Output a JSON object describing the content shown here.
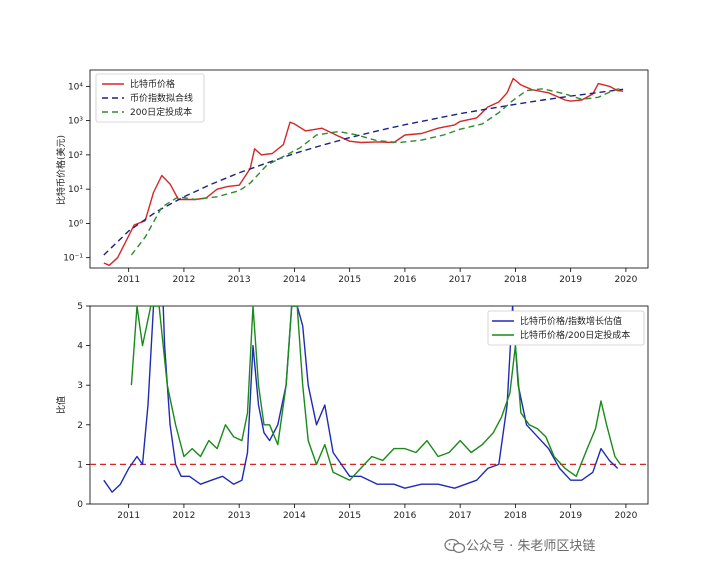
{
  "watermark": {
    "text": "公众号 · 朱老师区块链",
    "icon": "wechat-icon",
    "color": "#777777"
  },
  "chart_data": [
    {
      "type": "line",
      "title": "",
      "xlabel": "",
      "ylabel": "比特币价格(美元)",
      "yscale": "log",
      "ylim": [
        0.05,
        30000
      ],
      "xlim": [
        2010.3,
        2020.4
      ],
      "x_ticks": [
        "2011",
        "2012",
        "2013",
        "2014",
        "2015",
        "2016",
        "2017",
        "2018",
        "2019",
        "2020"
      ],
      "y_ticks": [
        {
          "value": 0.1,
          "label": "10⁻¹"
        },
        {
          "value": 1,
          "label": "10⁰"
        },
        {
          "value": 10,
          "label": "10¹"
        },
        {
          "value": 100,
          "label": "10²"
        },
        {
          "value": 1000,
          "label": "10³"
        },
        {
          "value": 10000,
          "label": "10⁴"
        }
      ],
      "legend_position": "top-left",
      "grid": false,
      "series": [
        {
          "name": "比特币价格",
          "color": "#d62728",
          "dash": "solid",
          "x": [
            2010.55,
            2010.65,
            2010.8,
            2010.95,
            2011.1,
            2011.3,
            2011.45,
            2011.6,
            2011.75,
            2011.9,
            2012.0,
            2012.2,
            2012.4,
            2012.6,
            2012.8,
            2013.0,
            2013.2,
            2013.28,
            2013.4,
            2013.6,
            2013.8,
            2013.92,
            2014.0,
            2014.2,
            2014.5,
            2014.8,
            2015.0,
            2015.2,
            2015.5,
            2015.8,
            2016.0,
            2016.3,
            2016.6,
            2016.9,
            2017.0,
            2017.3,
            2017.5,
            2017.7,
            2017.85,
            2017.96,
            2018.1,
            2018.3,
            2018.6,
            2018.9,
            2019.0,
            2019.2,
            2019.4,
            2019.5,
            2019.7,
            2019.85,
            2019.95
          ],
          "y": [
            0.07,
            0.06,
            0.1,
            0.3,
            0.9,
            1.2,
            8,
            25,
            14,
            5,
            5,
            5,
            5.5,
            10,
            12,
            13,
            40,
            150,
            100,
            110,
            200,
            900,
            800,
            500,
            600,
            350,
            250,
            230,
            240,
            230,
            380,
            420,
            600,
            750,
            950,
            1200,
            2500,
            3500,
            6500,
            17000,
            11000,
            8000,
            6500,
            4000,
            3700,
            4000,
            6000,
            12000,
            10000,
            7500,
            7200
          ]
        },
        {
          "name": "币价指数拟合线",
          "color": "#1a237e",
          "dash": "6,4",
          "x": [
            2010.55,
            2011.0,
            2011.5,
            2012.0,
            2012.5,
            2013.0,
            2013.5,
            2014.0,
            2014.5,
            2015.0,
            2015.5,
            2016.0,
            2016.5,
            2017.0,
            2017.5,
            2018.0,
            2018.5,
            2019.0,
            2019.5,
            2019.95
          ],
          "y": [
            0.12,
            0.6,
            2.2,
            6,
            14,
            30,
            58,
            110,
            190,
            320,
            500,
            760,
            1100,
            1600,
            2200,
            3000,
            4000,
            5200,
            6600,
            8200
          ]
        },
        {
          "name": "200日定投成本",
          "color": "#2e8b2e",
          "dash": "6,4",
          "x": [
            2011.05,
            2011.3,
            2011.6,
            2011.9,
            2012.2,
            2012.6,
            2013.0,
            2013.2,
            2013.5,
            2013.8,
            2014.1,
            2014.4,
            2014.8,
            2015.1,
            2015.5,
            2015.9,
            2016.3,
            2016.7,
            2017.0,
            2017.4,
            2017.7,
            2017.95,
            2018.2,
            2018.5,
            2018.9,
            2019.2,
            2019.5,
            2019.8,
            2019.95
          ],
          "y": [
            0.12,
            0.4,
            3,
            6,
            5,
            6,
            9,
            15,
            50,
            90,
            160,
            380,
            480,
            390,
            260,
            230,
            270,
            380,
            560,
            800,
            1700,
            3800,
            7500,
            8500,
            6000,
            4200,
            4800,
            8000,
            8900
          ]
        }
      ]
    },
    {
      "type": "line",
      "title": "",
      "xlabel": "",
      "ylabel": "比值",
      "ylim": [
        0,
        5
      ],
      "xlim": [
        2010.3,
        2020.4
      ],
      "x_ticks": [
        "2011",
        "2012",
        "2013",
        "2014",
        "2015",
        "2016",
        "2017",
        "2018",
        "2019",
        "2020"
      ],
      "y_ticks": [
        0,
        1,
        2,
        3,
        4,
        5
      ],
      "legend_position": "top-right",
      "grid": false,
      "reference_line": {
        "value": 1,
        "color": "#d62728",
        "dash": "6,4"
      },
      "series": [
        {
          "name": "比特币价格/指数增长估值",
          "color": "#1f2bb5",
          "x": [
            2010.55,
            2010.7,
            2010.85,
            2011.0,
            2011.15,
            2011.25,
            2011.35,
            2011.45,
            2011.55,
            2011.65,
            2011.75,
            2011.85,
            2011.95,
            2012.1,
            2012.3,
            2012.5,
            2012.7,
            2012.9,
            2013.05,
            2013.15,
            2013.25,
            2013.35,
            2013.45,
            2013.55,
            2013.7,
            2013.85,
            2013.95,
            2014.05,
            2014.15,
            2014.25,
            2014.4,
            2014.55,
            2014.7,
            2014.85,
            2015.0,
            2015.2,
            2015.5,
            2015.8,
            2016.0,
            2016.3,
            2016.6,
            2016.9,
            2017.1,
            2017.3,
            2017.5,
            2017.7,
            2017.85,
            2017.95,
            2018.05,
            2018.2,
            2018.4,
            2018.6,
            2018.8,
            2019.0,
            2019.2,
            2019.4,
            2019.55,
            2019.7,
            2019.85
          ],
          "y": [
            0.6,
            0.3,
            0.5,
            0.9,
            1.2,
            1.0,
            2.5,
            5,
            8,
            4,
            2,
            1.0,
            0.7,
            0.7,
            0.5,
            0.6,
            0.7,
            0.5,
            0.6,
            1.3,
            4,
            2.5,
            1.8,
            1.6,
            2,
            3,
            5,
            5,
            4.5,
            3,
            2,
            2.5,
            1.3,
            1.0,
            0.7,
            0.7,
            0.5,
            0.5,
            0.4,
            0.5,
            0.5,
            0.4,
            0.5,
            0.6,
            0.9,
            1.0,
            2.5,
            5,
            3,
            2,
            1.7,
            1.4,
            0.9,
            0.6,
            0.6,
            0.8,
            1.4,
            1.1,
            0.9
          ]
        },
        {
          "name": "比特币价格/200日定投成本",
          "color": "#1a8a1a",
          "x": [
            2011.05,
            2011.15,
            2011.25,
            2011.4,
            2011.55,
            2011.7,
            2011.85,
            2012.0,
            2012.15,
            2012.3,
            2012.45,
            2012.6,
            2012.75,
            2012.9,
            2013.05,
            2013.15,
            2013.25,
            2013.35,
            2013.45,
            2013.55,
            2013.7,
            2013.85,
            2013.95,
            2014.05,
            2014.15,
            2014.25,
            2014.4,
            2014.55,
            2014.7,
            2014.85,
            2015.0,
            2015.2,
            2015.4,
            2015.6,
            2015.8,
            2016.0,
            2016.2,
            2016.4,
            2016.6,
            2016.8,
            2017.0,
            2017.2,
            2017.4,
            2017.6,
            2017.75,
            2017.9,
            2018.0,
            2018.1,
            2018.25,
            2018.4,
            2018.55,
            2018.7,
            2018.9,
            2019.1,
            2019.3,
            2019.45,
            2019.55,
            2019.65,
            2019.8,
            2019.9
          ],
          "y": [
            3,
            5,
            4,
            5,
            5,
            3,
            2,
            1.2,
            1.4,
            1.2,
            1.6,
            1.4,
            2.0,
            1.7,
            1.6,
            2.3,
            5,
            3,
            2,
            2,
            1.5,
            3,
            5,
            5,
            3,
            1.6,
            1.0,
            1.5,
            0.8,
            0.7,
            0.6,
            0.9,
            1.2,
            1.1,
            1.4,
            1.4,
            1.3,
            1.6,
            1.2,
            1.3,
            1.6,
            1.3,
            1.5,
            1.8,
            2.2,
            2.8,
            4,
            2.3,
            2.0,
            1.9,
            1.7,
            1.2,
            0.9,
            0.7,
            1.4,
            1.9,
            2.6,
            2.0,
            1.2,
            1.0
          ]
        }
      ]
    }
  ]
}
